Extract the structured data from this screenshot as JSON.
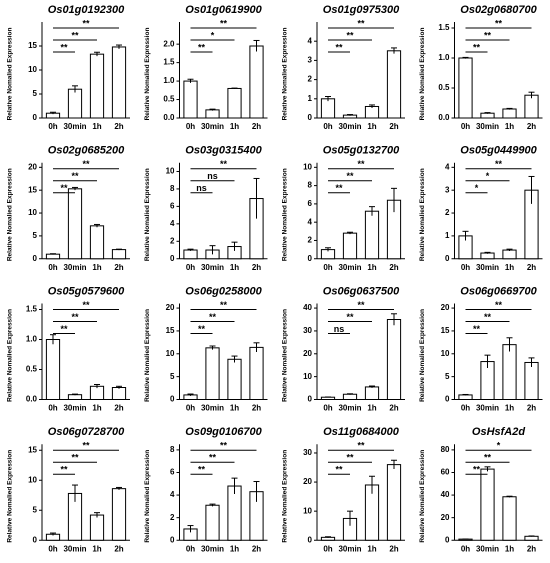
{
  "chart_data": [
    {
      "type": "bar",
      "title": "Os01g0192300",
      "ylabel": "Relative Nomalied Expression",
      "categories": [
        "0h",
        "30min",
        "1h",
        "2h"
      ],
      "values": [
        1.0,
        6.0,
        13.3,
        14.8
      ],
      "errors": [
        0.2,
        0.7,
        0.4,
        0.4
      ],
      "significance": [
        "**",
        "**",
        "**"
      ],
      "ylim": [
        0,
        20
      ],
      "yticks": [
        0,
        5,
        10,
        15
      ]
    },
    {
      "type": "bar",
      "title": "Os01g0619900",
      "ylabel": "Relative Nomalied Expression",
      "categories": [
        "0h",
        "30min",
        "1h",
        "2h"
      ],
      "values": [
        1.0,
        0.22,
        0.8,
        1.95
      ],
      "errors": [
        0.05,
        0.02,
        0.01,
        0.15
      ],
      "significance": [
        "**",
        "*",
        "**"
      ],
      "ylim": [
        0,
        2.6
      ],
      "yticks": [
        {
          "value": 0,
          "label": "0.0"
        },
        {
          "value": 0.5,
          "label": "0.5"
        },
        {
          "value": 1,
          "label": "1.0"
        },
        {
          "value": 1.5,
          "label": "1.5"
        },
        {
          "value": 2,
          "label": "2.0"
        }
      ]
    },
    {
      "type": "bar",
      "title": "Os01g0975300",
      "ylabel": "Relative Nomalied Expression",
      "categories": [
        "0h",
        "30min",
        "1h",
        "2h"
      ],
      "values": [
        1.0,
        0.15,
        0.6,
        3.5
      ],
      "errors": [
        0.12,
        0.03,
        0.08,
        0.15
      ],
      "significance": [
        "**",
        "**",
        "**"
      ],
      "ylim": [
        0,
        5
      ],
      "yticks": [
        0,
        1,
        2,
        3,
        4
      ]
    },
    {
      "type": "bar",
      "title": "Os02g0680700",
      "ylabel": "Relative Nomalied Expression",
      "categories": [
        "0h",
        "30min",
        "1h",
        "2h"
      ],
      "values": [
        1.0,
        0.08,
        0.15,
        0.38
      ],
      "errors": [
        0.01,
        0.01,
        0.01,
        0.05
      ],
      "significance": [
        "**",
        "**",
        "**"
      ],
      "ylim": [
        0,
        1.6
      ],
      "yticks": [
        {
          "value": 0,
          "label": "0.0"
        },
        {
          "value": 0.5,
          "label": "0.5"
        },
        {
          "value": 1,
          "label": "1.0"
        },
        {
          "value": 1.5,
          "label": "1.5"
        }
      ]
    },
    {
      "type": "bar",
      "title": "Os02g0685200",
      "ylabel": "Relative Nomalied Expression",
      "categories": [
        "0h",
        "30min",
        "1h",
        "2h"
      ],
      "values": [
        1.0,
        15.3,
        7.2,
        2.0
      ],
      "errors": [
        0.1,
        0.3,
        0.3,
        0.1
      ],
      "significance": [
        "**",
        "**",
        "**"
      ],
      "ylim": [
        0,
        21
      ],
      "yticks": [
        0,
        5,
        10,
        15,
        20
      ]
    },
    {
      "type": "bar",
      "title": "Os03g0315400",
      "ylabel": "Relative Nomalied Expression",
      "categories": [
        "0h",
        "30min",
        "1h",
        "2h"
      ],
      "values": [
        1.0,
        1.0,
        1.4,
        6.9
      ],
      "errors": [
        0.1,
        0.5,
        0.5,
        2.3
      ],
      "significance": [
        "ns",
        "ns",
        "**"
      ],
      "ylim": [
        0,
        11
      ],
      "yticks": [
        0,
        2,
        4,
        6,
        8,
        10
      ]
    },
    {
      "type": "bar",
      "title": "Os05g0132700",
      "ylabel": "Relative Nomalied Expression",
      "categories": [
        "0h",
        "30min",
        "1h",
        "2h"
      ],
      "values": [
        1.0,
        2.8,
        5.2,
        6.4
      ],
      "errors": [
        0.2,
        0.1,
        0.5,
        1.3
      ],
      "significance": [
        "**",
        "**",
        "**"
      ],
      "ylim": [
        0,
        10.5
      ],
      "yticks": [
        0,
        2,
        4,
        6,
        8,
        10
      ]
    },
    {
      "type": "bar",
      "title": "Os05g0449900",
      "ylabel": "Relative Nomalied Expression",
      "categories": [
        "0h",
        "30min",
        "1h",
        "2h"
      ],
      "values": [
        1.0,
        0.25,
        0.38,
        3.0
      ],
      "errors": [
        0.2,
        0.03,
        0.04,
        0.6
      ],
      "significance": [
        "*",
        "*",
        "**"
      ],
      "ylim": [
        0,
        4.2
      ],
      "yticks": [
        0,
        1,
        2,
        3,
        4
      ]
    },
    {
      "type": "bar",
      "title": "Os05g0579600",
      "ylabel": "Relative Nomalied Expression",
      "categories": [
        "0h",
        "30min",
        "1h",
        "2h"
      ],
      "values": [
        1.0,
        0.08,
        0.22,
        0.2
      ],
      "errors": [
        0.08,
        0.01,
        0.03,
        0.02
      ],
      "significance": [
        "**",
        "**",
        "**"
      ],
      "ylim": [
        0,
        1.6
      ],
      "yticks": [
        {
          "value": 0,
          "label": "0.0"
        },
        {
          "value": 0.5,
          "label": "0.5"
        },
        {
          "value": 1,
          "label": "1.0"
        },
        {
          "value": 1.5,
          "label": "1.5"
        }
      ]
    },
    {
      "type": "bar",
      "title": "Os06g0258000",
      "ylabel": "Relative Nomalied Expression",
      "categories": [
        "0h",
        "30min",
        "1h",
        "2h"
      ],
      "values": [
        1.0,
        11.3,
        8.8,
        11.4
      ],
      "errors": [
        0.2,
        0.4,
        0.7,
        1.0
      ],
      "significance": [
        "**",
        "**",
        "**"
      ],
      "ylim": [
        0,
        21
      ],
      "yticks": [
        0,
        5,
        10,
        15,
        20
      ]
    },
    {
      "type": "bar",
      "title": "Os06g0637500",
      "ylabel": "Relative Nomalied Expression",
      "categories": [
        "0h",
        "30min",
        "1h",
        "2h"
      ],
      "values": [
        1.0,
        2.3,
        5.5,
        35
      ],
      "errors": [
        0.1,
        0.2,
        0.4,
        2.5
      ],
      "significance": [
        "ns",
        "**",
        "**"
      ],
      "ylim": [
        0,
        42
      ],
      "yticks": [
        0,
        10,
        20,
        30,
        40
      ]
    },
    {
      "type": "bar",
      "title": "Os06g0669700",
      "ylabel": "Relative Nomalied Expression",
      "categories": [
        "0h",
        "30min",
        "1h",
        "2h"
      ],
      "values": [
        1.0,
        8.3,
        12,
        8.1
      ],
      "errors": [
        0.1,
        1.4,
        1.5,
        1.0
      ],
      "significance": [
        "**",
        "**",
        "**"
      ],
      "ylim": [
        0,
        21
      ],
      "yticks": [
        0,
        5,
        10,
        15,
        20
      ]
    },
    {
      "type": "bar",
      "title": "Os06g0728700",
      "ylabel": "Relative Nomalied Expression",
      "categories": [
        "0h",
        "30min",
        "1h",
        "2h"
      ],
      "values": [
        1.0,
        7.8,
        4.2,
        8.6
      ],
      "errors": [
        0.2,
        1.4,
        0.4,
        0.2
      ],
      "significance": [
        "**",
        "**",
        "**"
      ],
      "ylim": [
        0,
        16
      ],
      "yticks": [
        0,
        5,
        10,
        15
      ]
    },
    {
      "type": "bar",
      "title": "Os09g0106700",
      "ylabel": "Relative Nomalied Expression",
      "categories": [
        "0h",
        "30min",
        "1h",
        "2h"
      ],
      "values": [
        1.0,
        3.1,
        4.8,
        4.3
      ],
      "errors": [
        0.3,
        0.1,
        0.7,
        0.9
      ],
      "significance": [
        "**",
        "**",
        "**"
      ],
      "ylim": [
        0,
        8.5
      ],
      "yticks": [
        0,
        2,
        4,
        6,
        8
      ]
    },
    {
      "type": "bar",
      "title": "Os11g0684000",
      "ylabel": "Relative Nomalied Expression",
      "categories": [
        "0h",
        "30min",
        "1h",
        "2h"
      ],
      "values": [
        1.0,
        7.5,
        19,
        26
      ],
      "errors": [
        0.2,
        2.5,
        3,
        1.5
      ],
      "significance": [
        "**",
        "**",
        "**"
      ],
      "ylim": [
        0,
        33
      ],
      "yticks": [
        0,
        10,
        20,
        30
      ]
    },
    {
      "type": "bar",
      "title": "OsHsfA2d",
      "ylabel": "Relative Nomalied Expression",
      "categories": [
        "0h",
        "30min",
        "1h",
        "2h"
      ],
      "values": [
        1.0,
        63,
        38.5,
        3.5
      ],
      "errors": [
        0.1,
        2,
        0.5,
        0.3
      ],
      "significance": [
        "**",
        "**",
        "*"
      ],
      "ylim": [
        0,
        85
      ],
      "yticks": [
        0,
        20,
        40,
        60,
        80
      ]
    }
  ]
}
